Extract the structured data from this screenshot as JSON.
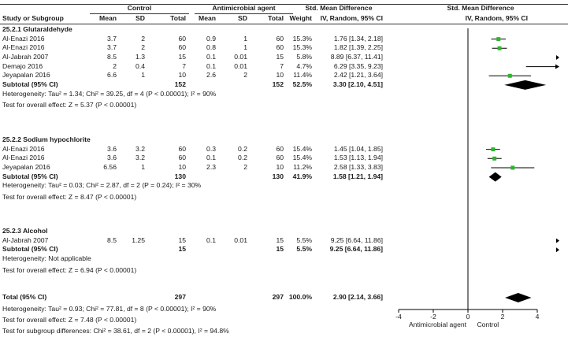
{
  "header": {
    "group1": "Control",
    "group2": "Antimicrobial agent",
    "smd_title": "Std. Mean Difference",
    "smd_title_plot": "Std. Mean Difference",
    "cols": [
      "Study or Subgroup",
      "Mean",
      "SD",
      "Total",
      "Mean",
      "SD",
      "Total",
      "Weight",
      "IV, Random, 95% CI",
      "IV, Random, 95% CI"
    ]
  },
  "chart_data": {
    "type": "forest",
    "xlim": [
      -4,
      4
    ],
    "x_ticks": [
      "-4",
      "-2",
      "0",
      "2",
      "4"
    ],
    "x_tick_values": [
      -4,
      -2,
      0,
      2,
      4
    ],
    "favours_left": "Antimicrobial agent",
    "favours_right": "Control",
    "subgroups": [
      {
        "title": "25.2.1 Glutaraldehyde",
        "studies": [
          {
            "name": "Al-Enazi 2016",
            "c_mean": "3.7",
            "c_sd": "2",
            "c_total": "60",
            "a_mean": "0.9",
            "a_sd": "1",
            "a_total": "60",
            "weight": "15.3%",
            "ci": "1.76 [1.34, 2.18]",
            "est": 1.76,
            "lo": 1.34,
            "hi": 2.18
          },
          {
            "name": "Al-Enazi 2016",
            "c_mean": "3.7",
            "c_sd": "2",
            "c_total": "60",
            "a_mean": "0.8",
            "a_sd": "1",
            "a_total": "60",
            "weight": "15.3%",
            "ci": "1.82 [1.39, 2.25]",
            "est": 1.82,
            "lo": 1.39,
            "hi": 2.25
          },
          {
            "name": "Al-Jabrah 2007",
            "c_mean": "8.5",
            "c_sd": "1.3",
            "c_total": "15",
            "a_mean": "0.1",
            "a_sd": "0.01",
            "a_total": "15",
            "weight": "5.8%",
            "ci": "8.89 [6.37, 11.41]",
            "est": 8.89,
            "lo": 6.37,
            "hi": 11.41
          },
          {
            "name": "Demajo 2016",
            "c_mean": "2",
            "c_sd": "0.4",
            "c_total": "7",
            "a_mean": "0.1",
            "a_sd": "0.01",
            "a_total": "7",
            "weight": "4.7%",
            "ci": "6.29 [3.35, 9.23]",
            "est": 6.29,
            "lo": 3.35,
            "hi": 9.23
          },
          {
            "name": "Jeyapalan 2016",
            "c_mean": "6.6",
            "c_sd": "1",
            "c_total": "10",
            "a_mean": "2.6",
            "a_sd": "2",
            "a_total": "10",
            "weight": "11.4%",
            "ci": "2.42 [1.21, 3.64]",
            "est": 2.42,
            "lo": 1.21,
            "hi": 3.64
          }
        ],
        "subtotal": {
          "label": "Subtotal (95% CI)",
          "c_total": "152",
          "a_total": "152",
          "weight": "52.5%",
          "ci": "3.30 [2.10, 4.51]",
          "est": 3.3,
          "lo": 2.1,
          "hi": 4.51
        },
        "heterogeneity": "Heterogeneity: Tau² = 1.34; Chi² = 39.25, df = 4 (P < 0.00001); I² = 90%",
        "overall": "Test for overall effect: Z = 5.37 (P < 0.00001)"
      },
      {
        "title": "25.2.2 Sodium hypochlorite",
        "studies": [
          {
            "name": "Al-Enazi 2016",
            "c_mean": "3.6",
            "c_sd": "3.2",
            "c_total": "60",
            "a_mean": "0.3",
            "a_sd": "0.2",
            "a_total": "60",
            "weight": "15.4%",
            "ci": "1.45 [1.04, 1.85]",
            "est": 1.45,
            "lo": 1.04,
            "hi": 1.85
          },
          {
            "name": "Al-Enazi 2016",
            "c_mean": "3.6",
            "c_sd": "3.2",
            "c_total": "60",
            "a_mean": "0.1",
            "a_sd": "0.2",
            "a_total": "60",
            "weight": "15.4%",
            "ci": "1.53 [1.13, 1.94]",
            "est": 1.53,
            "lo": 1.13,
            "hi": 1.94
          },
          {
            "name": "Jeyapalan 2016",
            "c_mean": "6.56",
            "c_sd": "1",
            "c_total": "10",
            "a_mean": "2.3",
            "a_sd": "2",
            "a_total": "10",
            "weight": "11.2%",
            "ci": "2.58 [1.33, 3.83]",
            "est": 2.58,
            "lo": 1.33,
            "hi": 3.83
          }
        ],
        "subtotal": {
          "label": "Subtotal (95% CI)",
          "c_total": "130",
          "a_total": "130",
          "weight": "41.9%",
          "ci": "1.58 [1.21, 1.94]",
          "est": 1.58,
          "lo": 1.21,
          "hi": 1.94
        },
        "heterogeneity": "Heterogeneity: Tau² = 0.03; Chi² = 2.87, df = 2 (P = 0.24); I² = 30%",
        "overall": "Test for overall effect: Z = 8.47 (P < 0.00001)"
      },
      {
        "title": "25.2.3 Alcohol",
        "studies": [
          {
            "name": "Al-Jabrah 2007",
            "c_mean": "8.5",
            "c_sd": "1.25",
            "c_total": "15",
            "a_mean": "0.1",
            "a_sd": "0.01",
            "a_total": "15",
            "weight": "5.5%",
            "ci": "9.25 [6.64, 11.86]",
            "est": 9.25,
            "lo": 6.64,
            "hi": 11.86
          }
        ],
        "subtotal": {
          "label": "Subtotal (95% CI)",
          "c_total": "15",
          "a_total": "15",
          "weight": "5.5%",
          "ci": "9.25 [6.64, 11.86]",
          "est": 9.25,
          "lo": 6.64,
          "hi": 11.86
        },
        "heterogeneity": "Heterogeneity: Not applicable",
        "overall": "Test for overall effect: Z = 6.94 (P < 0.00001)"
      }
    ],
    "total": {
      "label": "Total (95% CI)",
      "c_total": "297",
      "a_total": "297",
      "weight": "100.0%",
      "ci": "2.90 [2.14, 3.66]",
      "est": 2.9,
      "lo": 2.14,
      "hi": 3.66
    },
    "footer": [
      "Heterogeneity: Tau² = 0.93; Chi² = 77.81, df = 8 (P < 0.00001); I² = 90%",
      "Test for overall effect: Z = 7.48 (P < 0.00001)",
      "Test for subgroup differences: Chi² = 38.61, df = 2 (P < 0.00001), I² = 94.8%"
    ],
    "colors": {
      "point": "#2db52d",
      "line": "#000000",
      "diamond": "#000000"
    }
  }
}
